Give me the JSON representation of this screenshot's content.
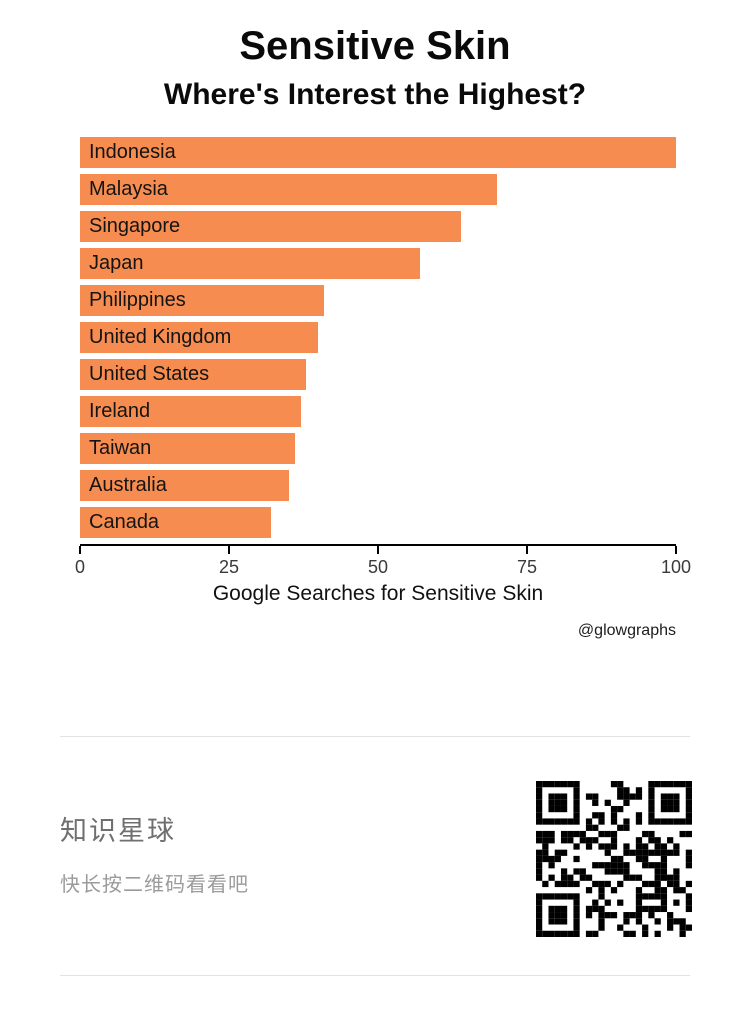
{
  "chart_data": {
    "type": "bar",
    "orientation": "horizontal",
    "title": "Sensitive Skin",
    "subtitle": "Where's Interest the Highest?",
    "xlabel": "Google Searches for Sensitive Skin",
    "attribution": "@glowgraphs",
    "categories": [
      "Indonesia",
      "Malaysia",
      "Singapore",
      "Japan",
      "Philippines",
      "United Kingdom",
      "United States",
      "Ireland",
      "Taiwan",
      "Australia",
      "Canada"
    ],
    "values": [
      100,
      70,
      64,
      57,
      41,
      40,
      38,
      37,
      36,
      35,
      32
    ],
    "xlim": [
      0,
      100
    ],
    "xticks": [
      0,
      25,
      50,
      75,
      100
    ],
    "bar_color": "#F68C4F",
    "grid": false,
    "legend": "none"
  },
  "footer": {
    "title": "知识星球",
    "subtitle": "快长按二维码看看吧"
  }
}
